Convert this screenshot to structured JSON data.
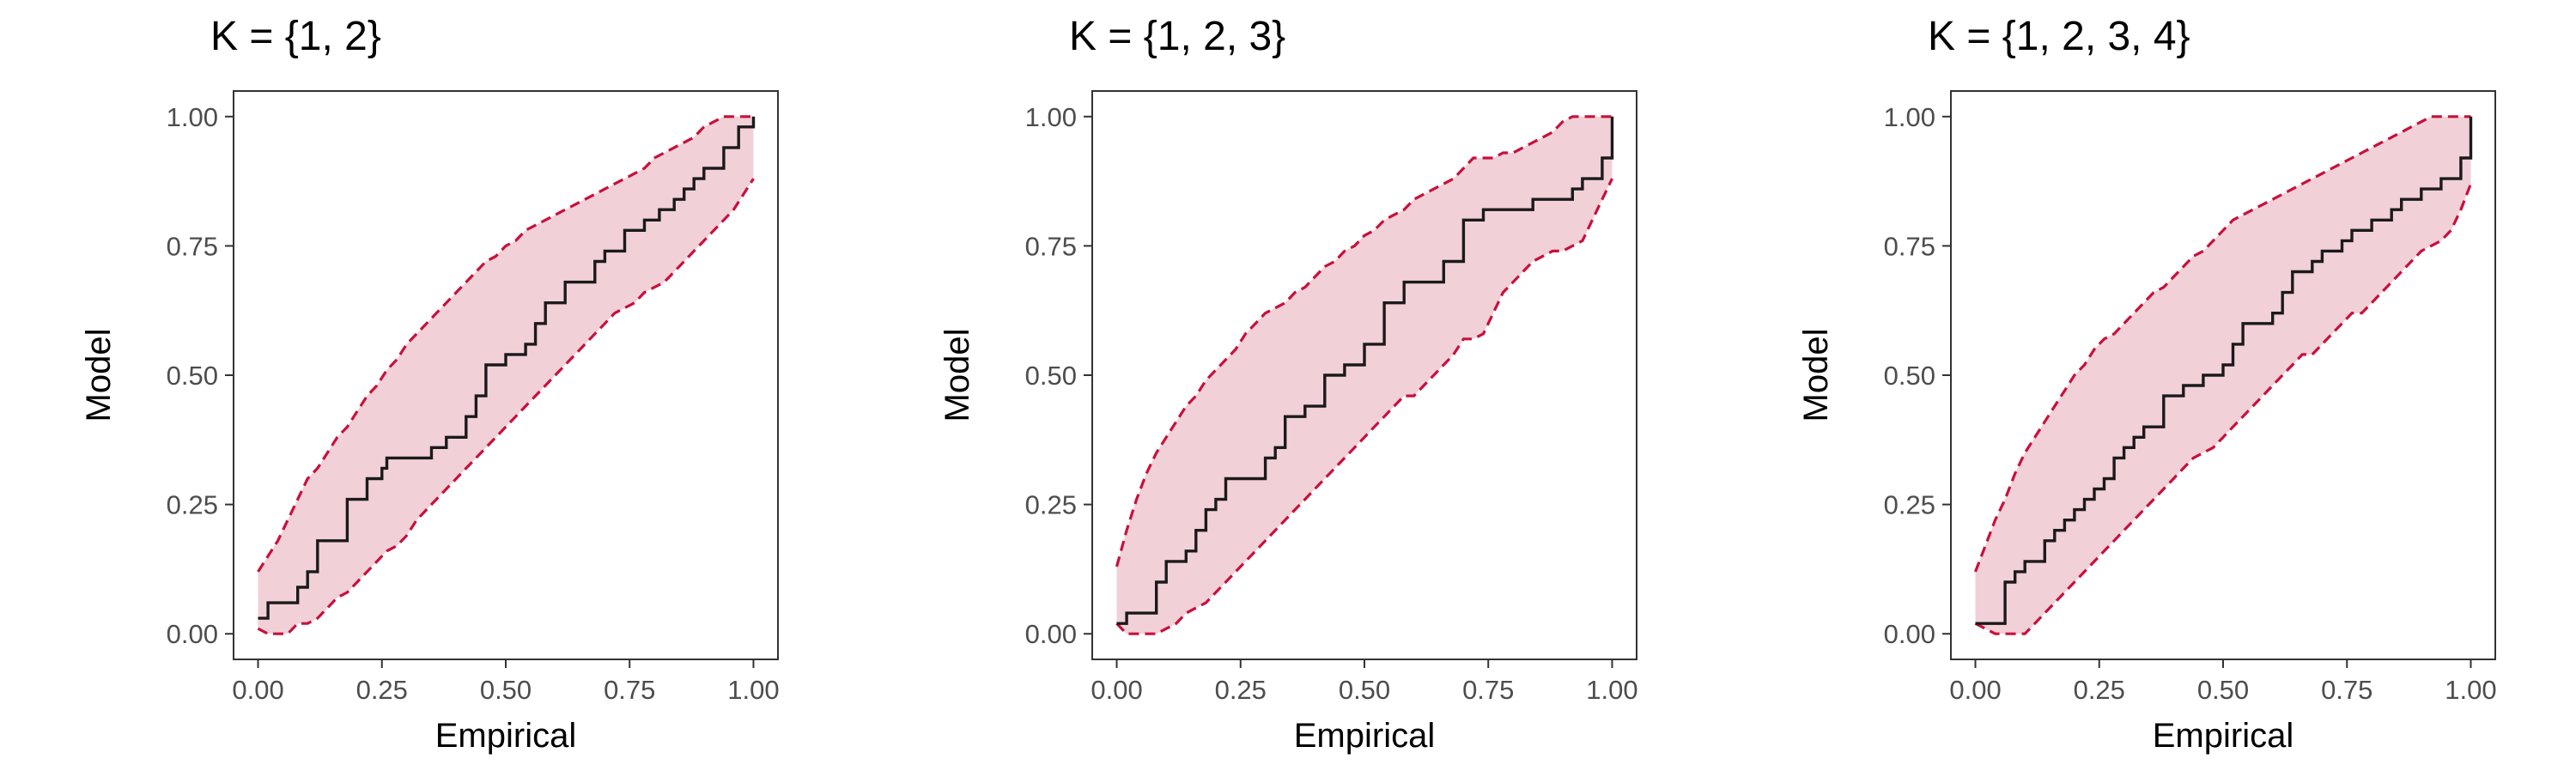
{
  "colors": {
    "band_fill": "#f2d0d8",
    "band_edge": "#c8103c",
    "step_line": "#1a1a1a",
    "text": "#000000",
    "tick_text": "#4d4d4d"
  },
  "chart_data": [
    {
      "type": "line",
      "title": "K = {1, 2}",
      "xlabel": "Empirical",
      "ylabel": "Model",
      "xlim": [
        0,
        1
      ],
      "ylim": [
        0,
        1
      ],
      "xticks": [
        "0.00",
        "0.25",
        "0.50",
        "0.75",
        "1.00"
      ],
      "yticks": [
        "0.00",
        "0.25",
        "0.50",
        "0.75",
        "1.00"
      ],
      "grid": false,
      "series": [
        {
          "kind": "step",
          "x": [
            0.0,
            0.02,
            0.02,
            0.08,
            0.08,
            0.1,
            0.1,
            0.12,
            0.12,
            0.18,
            0.18,
            0.22,
            0.22,
            0.25,
            0.25,
            0.26,
            0.26,
            0.35,
            0.35,
            0.38,
            0.38,
            0.42,
            0.42,
            0.44,
            0.44,
            0.46,
            0.46,
            0.5,
            0.5,
            0.54,
            0.54,
            0.56,
            0.56,
            0.58,
            0.58,
            0.62,
            0.62,
            0.68,
            0.68,
            0.7,
            0.7,
            0.74,
            0.74,
            0.78,
            0.78,
            0.81,
            0.81,
            0.84,
            0.84,
            0.86,
            0.86,
            0.88,
            0.88,
            0.9,
            0.9,
            0.94,
            0.94,
            0.97,
            0.97,
            1.0,
            1.0
          ],
          "y": [
            0.03,
            0.03,
            0.06,
            0.06,
            0.09,
            0.09,
            0.12,
            0.12,
            0.18,
            0.18,
            0.26,
            0.26,
            0.3,
            0.3,
            0.32,
            0.32,
            0.34,
            0.34,
            0.36,
            0.36,
            0.38,
            0.38,
            0.42,
            0.42,
            0.46,
            0.46,
            0.52,
            0.52,
            0.54,
            0.54,
            0.56,
            0.56,
            0.6,
            0.6,
            0.64,
            0.64,
            0.68,
            0.68,
            0.72,
            0.72,
            0.74,
            0.74,
            0.78,
            0.78,
            0.8,
            0.8,
            0.82,
            0.82,
            0.84,
            0.84,
            0.86,
            0.86,
            0.88,
            0.88,
            0.9,
            0.9,
            0.94,
            0.94,
            0.98,
            0.98,
            1.0
          ]
        },
        {
          "kind": "band_upper",
          "x": [
            0.0,
            0.02,
            0.04,
            0.06,
            0.08,
            0.1,
            0.12,
            0.14,
            0.16,
            0.18,
            0.2,
            0.22,
            0.24,
            0.26,
            0.28,
            0.3,
            0.32,
            0.34,
            0.36,
            0.38,
            0.4,
            0.42,
            0.44,
            0.46,
            0.48,
            0.5,
            0.52,
            0.54,
            0.56,
            0.58,
            0.6,
            0.62,
            0.64,
            0.66,
            0.68,
            0.7,
            0.72,
            0.74,
            0.76,
            0.78,
            0.8,
            0.82,
            0.84,
            0.86,
            0.88,
            0.9,
            0.92,
            0.94,
            0.96,
            0.98,
            1.0
          ],
          "y": [
            0.12,
            0.15,
            0.18,
            0.22,
            0.26,
            0.3,
            0.32,
            0.35,
            0.38,
            0.4,
            0.43,
            0.46,
            0.48,
            0.51,
            0.53,
            0.56,
            0.58,
            0.6,
            0.62,
            0.64,
            0.66,
            0.68,
            0.7,
            0.72,
            0.73,
            0.75,
            0.76,
            0.78,
            0.79,
            0.8,
            0.81,
            0.82,
            0.83,
            0.84,
            0.85,
            0.86,
            0.87,
            0.88,
            0.89,
            0.9,
            0.92,
            0.93,
            0.94,
            0.95,
            0.96,
            0.98,
            0.99,
            1.0,
            1.0,
            1.0,
            1.0
          ]
        },
        {
          "kind": "band_lower",
          "x": [
            0.0,
            0.02,
            0.04,
            0.06,
            0.08,
            0.1,
            0.12,
            0.14,
            0.16,
            0.18,
            0.2,
            0.22,
            0.24,
            0.26,
            0.28,
            0.3,
            0.32,
            0.34,
            0.36,
            0.38,
            0.4,
            0.42,
            0.44,
            0.46,
            0.48,
            0.5,
            0.52,
            0.54,
            0.56,
            0.58,
            0.6,
            0.62,
            0.64,
            0.66,
            0.68,
            0.7,
            0.72,
            0.74,
            0.76,
            0.78,
            0.8,
            0.82,
            0.84,
            0.86,
            0.88,
            0.9,
            0.92,
            0.94,
            0.96,
            0.98,
            1.0
          ],
          "y": [
            0.01,
            0.0,
            0.0,
            0.0,
            0.02,
            0.02,
            0.03,
            0.05,
            0.07,
            0.08,
            0.1,
            0.12,
            0.14,
            0.16,
            0.17,
            0.19,
            0.22,
            0.24,
            0.26,
            0.28,
            0.3,
            0.32,
            0.34,
            0.36,
            0.38,
            0.4,
            0.42,
            0.44,
            0.46,
            0.48,
            0.5,
            0.52,
            0.54,
            0.56,
            0.58,
            0.6,
            0.62,
            0.63,
            0.64,
            0.66,
            0.67,
            0.68,
            0.7,
            0.72,
            0.74,
            0.76,
            0.78,
            0.8,
            0.82,
            0.85,
            0.88
          ]
        }
      ]
    },
    {
      "type": "line",
      "title": "K = {1, 2, 3}",
      "xlabel": "Empirical",
      "ylabel": "Model",
      "xlim": [
        0,
        1
      ],
      "ylim": [
        0,
        1
      ],
      "xticks": [
        "0.00",
        "0.25",
        "0.50",
        "0.75",
        "1.00"
      ],
      "yticks": [
        "0.00",
        "0.25",
        "0.50",
        "0.75",
        "1.00"
      ],
      "grid": false,
      "series": [
        {
          "kind": "step",
          "x": [
            0.0,
            0.02,
            0.02,
            0.08,
            0.08,
            0.1,
            0.1,
            0.14,
            0.14,
            0.16,
            0.16,
            0.18,
            0.18,
            0.2,
            0.2,
            0.22,
            0.22,
            0.3,
            0.3,
            0.32,
            0.32,
            0.34,
            0.34,
            0.38,
            0.38,
            0.42,
            0.42,
            0.46,
            0.46,
            0.5,
            0.5,
            0.54,
            0.54,
            0.58,
            0.58,
            0.66,
            0.66,
            0.7,
            0.7,
            0.74,
            0.74,
            0.84,
            0.84,
            0.92,
            0.92,
            0.94,
            0.94,
            0.98,
            0.98,
            1.0,
            1.0
          ],
          "y": [
            0.02,
            0.02,
            0.04,
            0.04,
            0.1,
            0.1,
            0.14,
            0.14,
            0.16,
            0.16,
            0.2,
            0.2,
            0.24,
            0.24,
            0.26,
            0.26,
            0.3,
            0.3,
            0.34,
            0.34,
            0.36,
            0.36,
            0.42,
            0.42,
            0.44,
            0.44,
            0.5,
            0.5,
            0.52,
            0.52,
            0.56,
            0.56,
            0.64,
            0.64,
            0.68,
            0.68,
            0.72,
            0.72,
            0.8,
            0.8,
            0.82,
            0.82,
            0.84,
            0.84,
            0.86,
            0.86,
            0.88,
            0.88,
            0.92,
            0.92,
            1.0
          ]
        },
        {
          "kind": "band_upper",
          "x": [
            0.0,
            0.02,
            0.04,
            0.06,
            0.08,
            0.1,
            0.12,
            0.14,
            0.16,
            0.18,
            0.2,
            0.22,
            0.24,
            0.26,
            0.28,
            0.3,
            0.32,
            0.34,
            0.36,
            0.38,
            0.4,
            0.42,
            0.44,
            0.46,
            0.48,
            0.5,
            0.52,
            0.54,
            0.56,
            0.58,
            0.6,
            0.62,
            0.64,
            0.66,
            0.68,
            0.7,
            0.72,
            0.74,
            0.76,
            0.78,
            0.8,
            0.82,
            0.84,
            0.86,
            0.88,
            0.9,
            0.92,
            0.94,
            0.96,
            0.98,
            1.0
          ],
          "y": [
            0.13,
            0.2,
            0.26,
            0.31,
            0.35,
            0.38,
            0.41,
            0.44,
            0.46,
            0.49,
            0.51,
            0.53,
            0.55,
            0.58,
            0.6,
            0.62,
            0.63,
            0.64,
            0.66,
            0.67,
            0.69,
            0.71,
            0.72,
            0.74,
            0.75,
            0.77,
            0.78,
            0.8,
            0.81,
            0.82,
            0.84,
            0.85,
            0.86,
            0.87,
            0.88,
            0.9,
            0.92,
            0.92,
            0.92,
            0.93,
            0.93,
            0.94,
            0.95,
            0.96,
            0.97,
            0.99,
            1.0,
            1.0,
            1.0,
            1.0,
            1.0
          ]
        },
        {
          "kind": "band_lower",
          "x": [
            0.0,
            0.02,
            0.04,
            0.06,
            0.08,
            0.1,
            0.12,
            0.14,
            0.16,
            0.18,
            0.2,
            0.22,
            0.24,
            0.26,
            0.28,
            0.3,
            0.32,
            0.34,
            0.36,
            0.38,
            0.4,
            0.42,
            0.44,
            0.46,
            0.48,
            0.5,
            0.52,
            0.54,
            0.56,
            0.58,
            0.6,
            0.62,
            0.64,
            0.66,
            0.68,
            0.7,
            0.72,
            0.74,
            0.76,
            0.78,
            0.8,
            0.82,
            0.84,
            0.86,
            0.88,
            0.9,
            0.92,
            0.94,
            0.96,
            0.98,
            1.0
          ],
          "y": [
            0.02,
            0.0,
            0.0,
            0.0,
            0.0,
            0.01,
            0.02,
            0.04,
            0.05,
            0.06,
            0.08,
            0.1,
            0.12,
            0.14,
            0.16,
            0.18,
            0.2,
            0.22,
            0.24,
            0.26,
            0.28,
            0.3,
            0.32,
            0.34,
            0.36,
            0.38,
            0.4,
            0.42,
            0.44,
            0.46,
            0.46,
            0.48,
            0.5,
            0.52,
            0.54,
            0.57,
            0.57,
            0.58,
            0.62,
            0.66,
            0.68,
            0.7,
            0.72,
            0.73,
            0.74,
            0.74,
            0.75,
            0.76,
            0.8,
            0.84,
            0.88
          ]
        }
      ]
    },
    {
      "type": "line",
      "title": "K = {1, 2, 3, 4}",
      "xlabel": "Empirical",
      "ylabel": "Model",
      "xlim": [
        0,
        1
      ],
      "ylim": [
        0,
        1
      ],
      "xticks": [
        "0.00",
        "0.25",
        "0.50",
        "0.75",
        "1.00"
      ],
      "yticks": [
        "0.00",
        "0.25",
        "0.50",
        "0.75",
        "1.00"
      ],
      "grid": false,
      "series": [
        {
          "kind": "step",
          "x": [
            0.0,
            0.06,
            0.06,
            0.08,
            0.08,
            0.1,
            0.1,
            0.14,
            0.14,
            0.16,
            0.16,
            0.18,
            0.18,
            0.2,
            0.2,
            0.22,
            0.22,
            0.24,
            0.24,
            0.26,
            0.26,
            0.28,
            0.28,
            0.3,
            0.3,
            0.32,
            0.32,
            0.34,
            0.34,
            0.38,
            0.38,
            0.42,
            0.42,
            0.46,
            0.46,
            0.5,
            0.5,
            0.52,
            0.52,
            0.54,
            0.54,
            0.6,
            0.6,
            0.62,
            0.62,
            0.64,
            0.64,
            0.68,
            0.68,
            0.7,
            0.7,
            0.74,
            0.74,
            0.76,
            0.76,
            0.8,
            0.8,
            0.84,
            0.84,
            0.86,
            0.86,
            0.9,
            0.9,
            0.94,
            0.94,
            0.98,
            0.98,
            1.0,
            1.0
          ],
          "y": [
            0.02,
            0.02,
            0.1,
            0.1,
            0.12,
            0.12,
            0.14,
            0.14,
            0.18,
            0.18,
            0.2,
            0.2,
            0.22,
            0.22,
            0.24,
            0.24,
            0.26,
            0.26,
            0.28,
            0.28,
            0.3,
            0.3,
            0.34,
            0.34,
            0.36,
            0.36,
            0.38,
            0.38,
            0.4,
            0.4,
            0.46,
            0.46,
            0.48,
            0.48,
            0.5,
            0.5,
            0.52,
            0.52,
            0.56,
            0.56,
            0.6,
            0.6,
            0.62,
            0.62,
            0.66,
            0.66,
            0.7,
            0.7,
            0.72,
            0.72,
            0.74,
            0.74,
            0.76,
            0.76,
            0.78,
            0.78,
            0.8,
            0.8,
            0.82,
            0.82,
            0.84,
            0.84,
            0.86,
            0.86,
            0.88,
            0.88,
            0.92,
            0.92,
            1.0
          ]
        },
        {
          "kind": "band_upper",
          "x": [
            0.0,
            0.02,
            0.04,
            0.06,
            0.08,
            0.1,
            0.12,
            0.14,
            0.16,
            0.18,
            0.2,
            0.22,
            0.24,
            0.26,
            0.28,
            0.3,
            0.32,
            0.34,
            0.36,
            0.38,
            0.4,
            0.42,
            0.44,
            0.46,
            0.48,
            0.5,
            0.52,
            0.54,
            0.56,
            0.58,
            0.6,
            0.62,
            0.64,
            0.66,
            0.68,
            0.7,
            0.72,
            0.74,
            0.76,
            0.78,
            0.8,
            0.82,
            0.84,
            0.86,
            0.88,
            0.9,
            0.92,
            0.94,
            0.96,
            0.98,
            1.0
          ],
          "y": [
            0.12,
            0.17,
            0.22,
            0.26,
            0.31,
            0.35,
            0.38,
            0.41,
            0.44,
            0.47,
            0.5,
            0.52,
            0.55,
            0.57,
            0.58,
            0.6,
            0.62,
            0.64,
            0.66,
            0.67,
            0.69,
            0.71,
            0.73,
            0.74,
            0.76,
            0.78,
            0.8,
            0.81,
            0.82,
            0.83,
            0.84,
            0.85,
            0.86,
            0.87,
            0.88,
            0.89,
            0.9,
            0.91,
            0.92,
            0.93,
            0.94,
            0.95,
            0.96,
            0.97,
            0.98,
            0.99,
            1.0,
            1.0,
            1.0,
            1.0,
            1.0
          ]
        },
        {
          "kind": "band_lower",
          "x": [
            0.0,
            0.02,
            0.04,
            0.06,
            0.08,
            0.1,
            0.12,
            0.14,
            0.16,
            0.18,
            0.2,
            0.22,
            0.24,
            0.26,
            0.28,
            0.3,
            0.32,
            0.34,
            0.36,
            0.38,
            0.4,
            0.42,
            0.44,
            0.46,
            0.48,
            0.5,
            0.52,
            0.54,
            0.56,
            0.58,
            0.6,
            0.62,
            0.64,
            0.66,
            0.68,
            0.7,
            0.72,
            0.74,
            0.76,
            0.78,
            0.8,
            0.82,
            0.84,
            0.86,
            0.88,
            0.9,
            0.92,
            0.94,
            0.96,
            0.98,
            1.0
          ],
          "y": [
            0.02,
            0.01,
            0.0,
            0.0,
            0.0,
            0.0,
            0.02,
            0.04,
            0.06,
            0.08,
            0.1,
            0.12,
            0.14,
            0.16,
            0.18,
            0.2,
            0.22,
            0.24,
            0.26,
            0.28,
            0.3,
            0.32,
            0.34,
            0.35,
            0.36,
            0.38,
            0.4,
            0.42,
            0.44,
            0.46,
            0.48,
            0.5,
            0.52,
            0.54,
            0.54,
            0.56,
            0.58,
            0.6,
            0.62,
            0.62,
            0.64,
            0.66,
            0.68,
            0.7,
            0.72,
            0.74,
            0.75,
            0.76,
            0.78,
            0.82,
            0.87
          ]
        }
      ]
    }
  ]
}
